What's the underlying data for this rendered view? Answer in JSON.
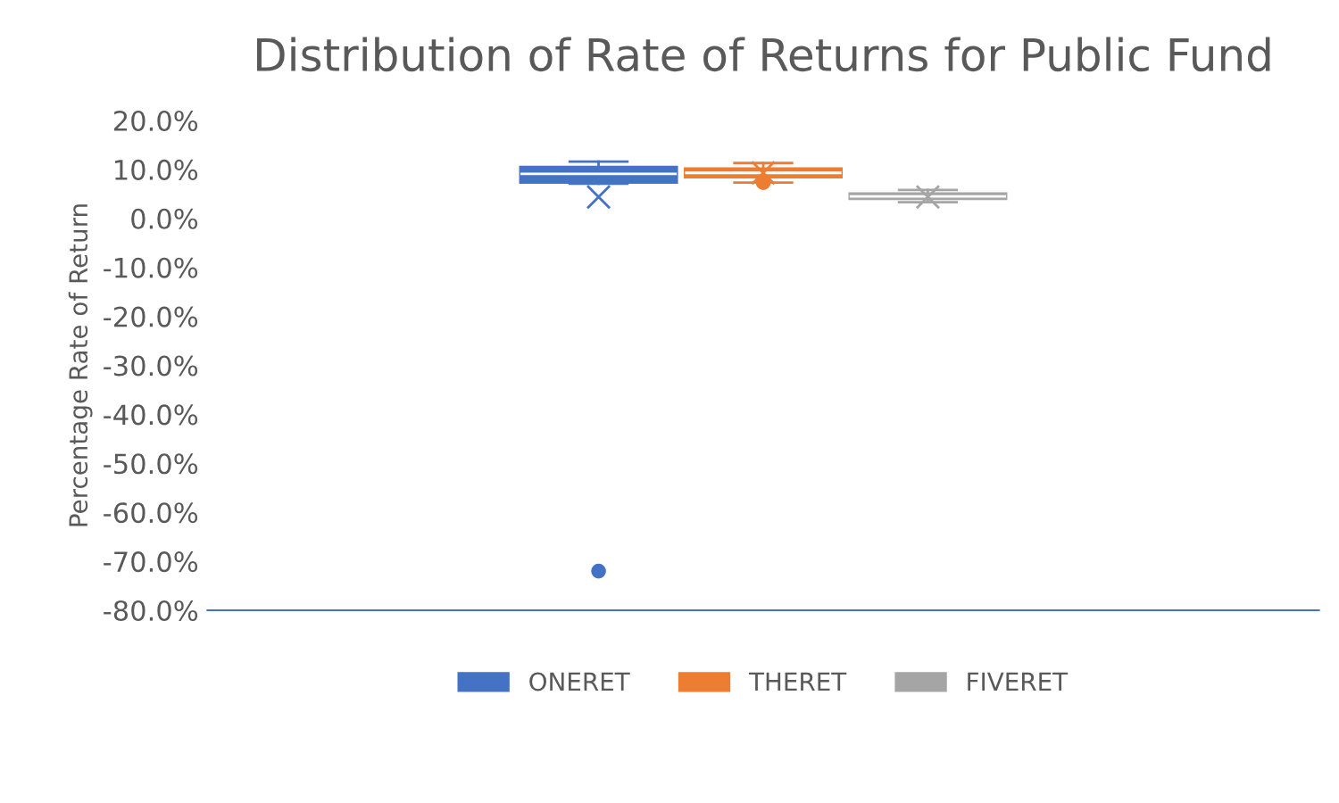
{
  "chart_data": {
    "type": "box",
    "title": "Distribution of Rate of Returns for Public Fund",
    "ylabel": "Percentage Rate of Return",
    "categories": [
      null
    ],
    "series": [
      {
        "name": "ONERET",
        "color": "#4472c4",
        "boxes": [
          {
            "low": 7.1,
            "q1": 7.3,
            "median": 9.1,
            "q3": 10.5,
            "high": 11.6,
            "mean": 4.4,
            "outliers": [
              -72
            ]
          }
        ]
      },
      {
        "name": "THERET",
        "color": "#ed7d31",
        "boxes": [
          {
            "low": 7.3,
            "q1": 8.4,
            "median": 9.3,
            "q3": 10.2,
            "high": 11.3,
            "mean": 9.3,
            "outliers": [
              7.3
            ]
          }
        ]
      },
      {
        "name": "FIVERET",
        "color": "#a5a5a5",
        "boxes": [
          {
            "low": 3.3,
            "q1": 4.0,
            "median": 4.5,
            "q3": 5.1,
            "high": 5.8,
            "mean": 4.4
          }
        ]
      }
    ],
    "ylim": [
      -80,
      20
    ],
    "yticks": [
      {
        "value": -80,
        "label": "-80.0%"
      },
      {
        "value": -70,
        "label": "-70.0%"
      },
      {
        "value": -60,
        "label": "-60.0%"
      },
      {
        "value": -50,
        "label": "-50.0%"
      },
      {
        "value": -40,
        "label": "-40.0%"
      },
      {
        "value": -30,
        "label": "-30.0%"
      },
      {
        "value": -20,
        "label": "-20.0%"
      },
      {
        "value": -10,
        "label": "-10.0%"
      },
      {
        "value": 0,
        "label": "0.0%"
      },
      {
        "value": 10,
        "label": "10.0%"
      },
      {
        "value": 20,
        "label": "20.0%"
      }
    ],
    "tick_labels": "y",
    "grid": false,
    "legend": "bottom"
  }
}
